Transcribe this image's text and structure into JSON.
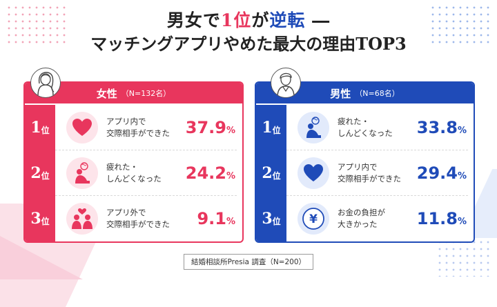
{
  "title": {
    "line1_a": "男女で",
    "line1_b": "1位",
    "line1_c": "が",
    "line1_d": "逆転",
    "line1_e": "―",
    "line2": "マッチングアプリやめた最大の理由TOP3"
  },
  "colors": {
    "women": "#e8365d",
    "men": "#1f4bb8"
  },
  "chart_data": [
    {
      "type": "table",
      "group": "女性",
      "n_label": "（N=132名）",
      "rank_suffix": "位",
      "unit": "%",
      "rows": [
        {
          "rank": "1",
          "reason_1": "アプリ内で",
          "reason_2": "交際相手ができた",
          "value": 37.9,
          "value_text": "37.9",
          "icon": "heart-icon"
        },
        {
          "rank": "2",
          "reason_1": "疲れた・",
          "reason_2": "しんどくなった",
          "value": 24.2,
          "value_text": "24.2",
          "icon": "tired-person-icon"
        },
        {
          "rank": "3",
          "reason_1": "アプリ外で",
          "reason_2": "交際相手ができた",
          "value": 9.1,
          "value_text": "9.1",
          "icon": "couple-icon"
        }
      ]
    },
    {
      "type": "table",
      "group": "男性",
      "n_label": "（N=68名）",
      "rank_suffix": "位",
      "unit": "%",
      "rows": [
        {
          "rank": "1",
          "reason_1": "疲れた・",
          "reason_2": "しんどくなった",
          "value": 33.8,
          "value_text": "33.8",
          "icon": "tired-person-icon"
        },
        {
          "rank": "2",
          "reason_1": "アプリ内で",
          "reason_2": "交際相手ができた",
          "value": 29.4,
          "value_text": "29.4",
          "icon": "heart-icon"
        },
        {
          "rank": "3",
          "reason_1": "お金の負担が",
          "reason_2": "大きかった",
          "value": 11.8,
          "value_text": "11.8",
          "icon": "yen-icon"
        }
      ]
    }
  ],
  "source": "結婚相談所Presia 調査（N=200）"
}
